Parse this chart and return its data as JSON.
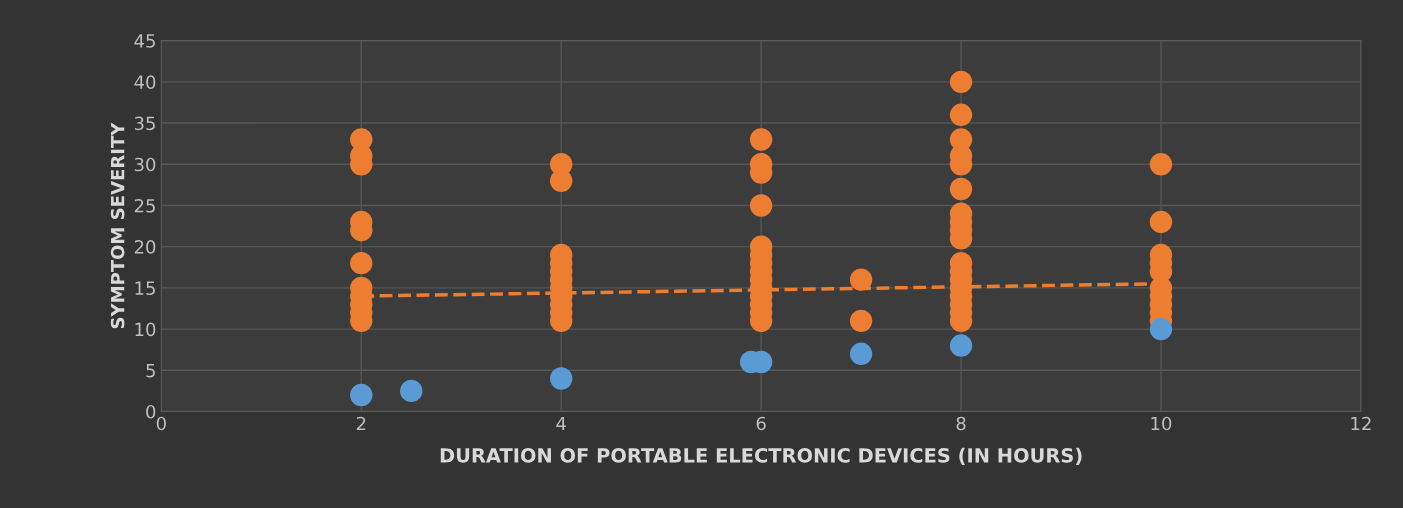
{
  "chart_data": {
    "type": "scatter",
    "xlabel": "DURATION OF PORTABLE ELECTRONIC DEVICES (IN HOURS)",
    "ylabel": "SYMPTOM SEVERITY",
    "xlim": [
      0,
      12
    ],
    "xticks": [
      0,
      2,
      4,
      6,
      8,
      10,
      12
    ],
    "ylim": [
      0,
      45
    ],
    "yticks": [
      0,
      5,
      10,
      15,
      20,
      25,
      30,
      35,
      40,
      45
    ],
    "grid": true,
    "series": [
      {
        "color": "#ed7d31",
        "marker": "circle",
        "x": [
          2,
          2,
          2,
          2,
          2,
          2,
          2,
          2,
          2,
          2,
          2,
          4,
          4,
          4,
          4,
          4,
          4,
          4,
          4,
          4,
          4,
          4,
          6,
          6,
          6,
          6,
          6,
          6,
          6,
          6,
          6,
          6,
          6,
          6,
          6,
          6,
          7,
          7,
          8,
          8,
          8,
          8,
          8,
          8,
          8,
          8,
          8,
          8,
          8,
          8,
          8,
          8,
          8,
          8,
          8,
          8,
          10,
          10,
          10,
          10,
          10,
          10,
          10,
          10,
          10,
          10
        ],
        "values": [
          33,
          31,
          30,
          23,
          22,
          18,
          15,
          14,
          13,
          12,
          11,
          30,
          28,
          19,
          18,
          17,
          16,
          15,
          14,
          13,
          12,
          11,
          33,
          30,
          29,
          25,
          20,
          19,
          18,
          17,
          16,
          15,
          14,
          13,
          12,
          11,
          16,
          11,
          40,
          36,
          33,
          31,
          30,
          27,
          24,
          23,
          22,
          21,
          18,
          17,
          16,
          15,
          14,
          13,
          12,
          11,
          30,
          23,
          19,
          18,
          17,
          15,
          14,
          13,
          12,
          11
        ]
      },
      {
        "color": "#5b9bd5",
        "marker": "circle",
        "x": [
          2,
          2.5,
          4,
          5.9,
          6,
          7,
          8,
          10
        ],
        "values": [
          2,
          2.5,
          4,
          6,
          6,
          7,
          8,
          10
        ]
      },
      {
        "type": "line",
        "color": "#ed7d31",
        "line_style": "dashed",
        "marker": "none",
        "x": [
          2,
          10
        ],
        "values": [
          14,
          15.5
        ]
      }
    ]
  }
}
